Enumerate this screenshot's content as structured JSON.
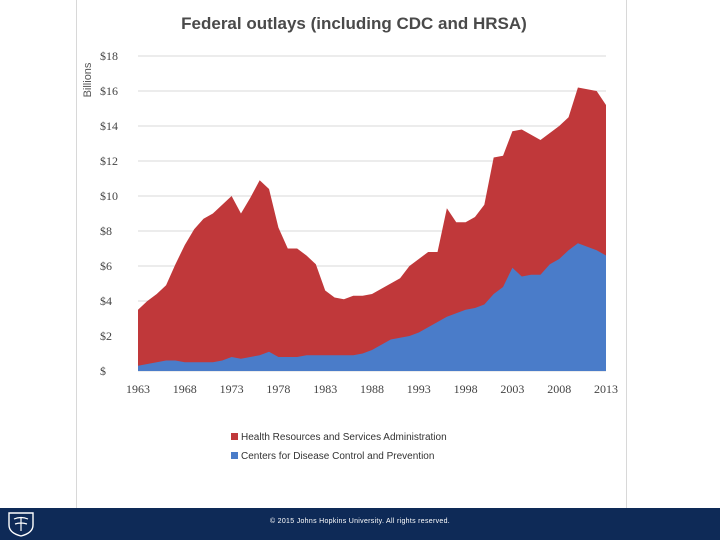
{
  "chart_data": {
    "type": "area",
    "stacked": false,
    "title": "Federal outlays (including CDC and HRSA)",
    "ylabel": "Billions",
    "xlabel": "",
    "x": [
      1963,
      1964,
      1965,
      1966,
      1967,
      1968,
      1969,
      1970,
      1971,
      1972,
      1973,
      1974,
      1975,
      1976,
      1977,
      1978,
      1979,
      1980,
      1981,
      1982,
      1983,
      1984,
      1985,
      1986,
      1987,
      1988,
      1989,
      1990,
      1991,
      1992,
      1993,
      1994,
      1995,
      1996,
      1997,
      1998,
      1999,
      2000,
      2001,
      2002,
      2003,
      2004,
      2005,
      2006,
      2007,
      2008,
      2009,
      2010,
      2011,
      2012,
      2013
    ],
    "xticks": [
      1963,
      1968,
      1973,
      1978,
      1983,
      1988,
      1993,
      1998,
      2003,
      2008,
      2013
    ],
    "xlim": [
      1963,
      2013
    ],
    "ylim": [
      0,
      18
    ],
    "yticks": [
      0,
      2,
      4,
      6,
      8,
      10,
      12,
      14,
      16,
      18
    ],
    "ytick_labels": [
      "$",
      "$2",
      "$4",
      "$6",
      "$8",
      "$10",
      "$12",
      "$14",
      "$16",
      "$18"
    ],
    "grid": true,
    "legend_position": "bottom",
    "series": [
      {
        "name": "Health Resources and Services Administration",
        "color": "#c0383a",
        "values": [
          3.5,
          4.0,
          4.4,
          4.9,
          6.1,
          7.2,
          8.1,
          8.7,
          9.0,
          9.5,
          10.0,
          9.0,
          9.9,
          10.9,
          10.4,
          8.2,
          7.0,
          7.0,
          6.6,
          6.1,
          4.6,
          4.2,
          4.1,
          4.3,
          4.3,
          4.4,
          4.7,
          5.0,
          5.3,
          6.0,
          6.4,
          6.8,
          6.8,
          9.3,
          8.5,
          8.5,
          8.8,
          9.5,
          12.2,
          12.3,
          13.7,
          13.8,
          13.5,
          13.2,
          13.6,
          14.0,
          14.5,
          16.2,
          16.1,
          16.0,
          15.2
        ]
      },
      {
        "name": "Centers for Disease Control and Prevention",
        "color": "#4a7cc9",
        "values": [
          0.3,
          0.4,
          0.5,
          0.6,
          0.6,
          0.5,
          0.5,
          0.5,
          0.5,
          0.6,
          0.8,
          0.7,
          0.8,
          0.9,
          1.1,
          0.8,
          0.8,
          0.8,
          0.9,
          0.9,
          0.9,
          0.9,
          0.9,
          0.9,
          1.0,
          1.2,
          1.5,
          1.8,
          1.9,
          2.0,
          2.2,
          2.5,
          2.8,
          3.1,
          3.3,
          3.5,
          3.6,
          3.8,
          4.4,
          4.8,
          5.9,
          5.4,
          5.5,
          5.5,
          6.1,
          6.4,
          6.9,
          7.3,
          7.1,
          6.9,
          6.6
        ]
      }
    ]
  },
  "footer": {
    "copyright": "© 2015 Johns Hopkins University. All rights reserved.",
    "logo_icon": "university-shield-icon"
  },
  "colors": {
    "footer_bg": "#0e2a57",
    "gridline": "#d9d9d9",
    "axis_text": "#444444",
    "title_text": "#4a4a4a"
  }
}
